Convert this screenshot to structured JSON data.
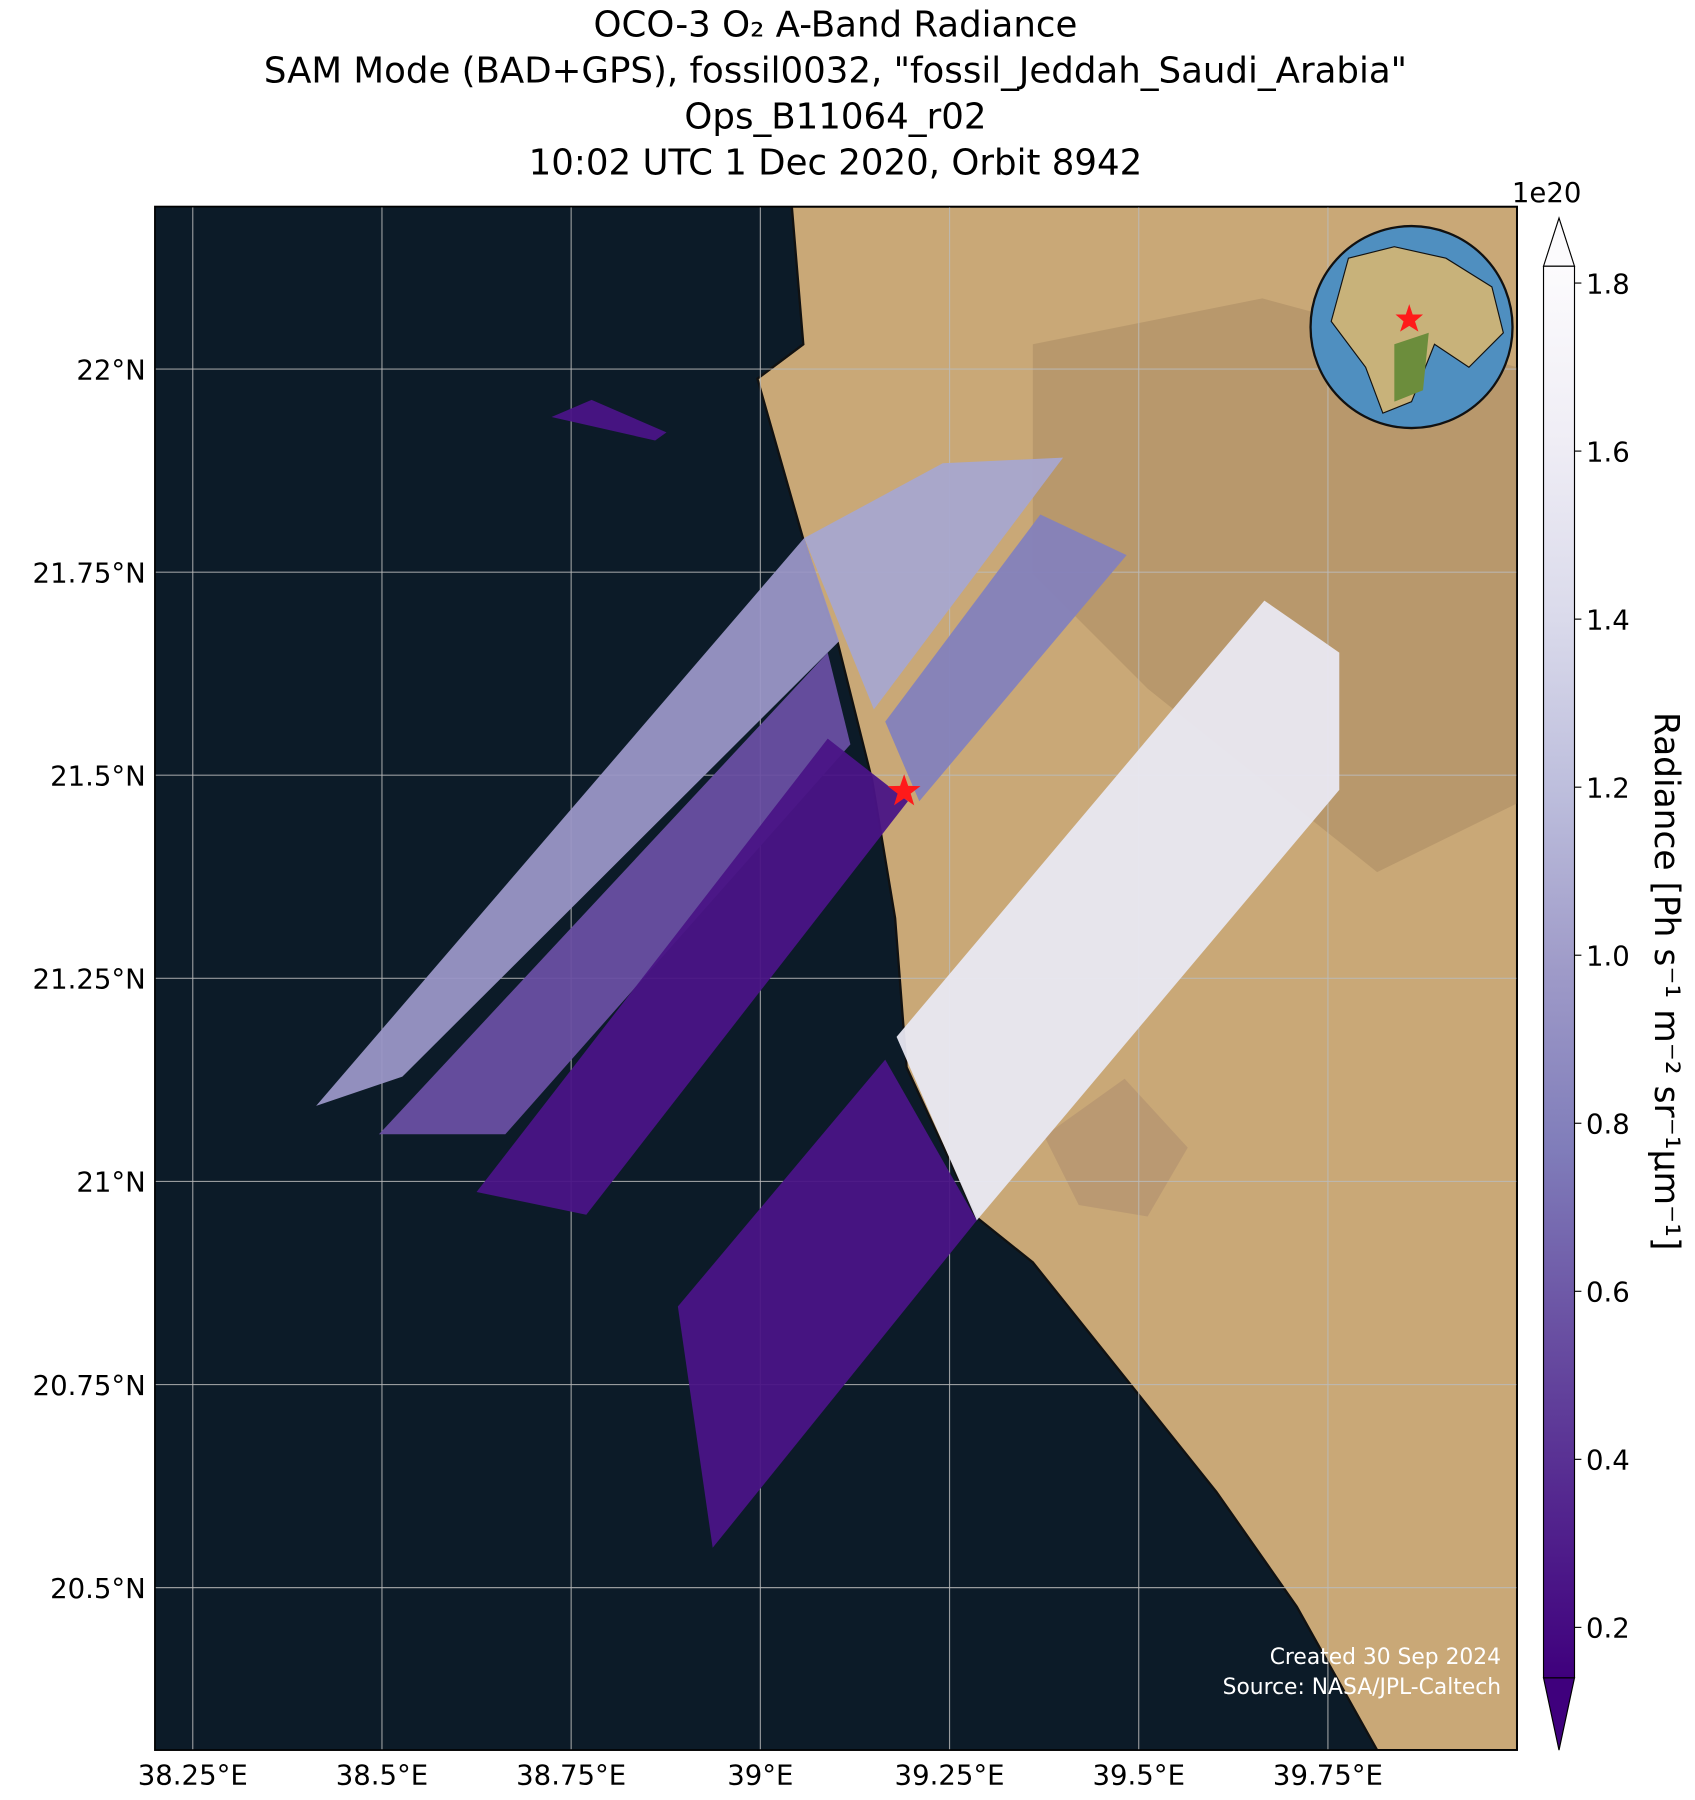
{
  "chart_data": {
    "type": "map",
    "title": [
      "OCO-3 O₂ A-Band Radiance",
      "SAM Mode (BAD+GPS), fossil0032, \"fossil_Jeddah_Saudi_Arabia\"",
      "Ops_B11064_r02",
      "10:02 UTC 1 Dec 2020, Orbit 8942"
    ],
    "xlim": [
      38.2,
      40.0
    ],
    "ylim": [
      20.3,
      22.2
    ],
    "xticks": [
      {
        "value": 38.25,
        "label": "38.25°E"
      },
      {
        "value": 38.5,
        "label": "38.5°E"
      },
      {
        "value": 38.75,
        "label": "38.75°E"
      },
      {
        "value": 39,
        "label": "39°E"
      },
      {
        "value": 39.25,
        "label": "39.25°E"
      },
      {
        "value": 39.5,
        "label": "39.5°E"
      },
      {
        "value": 39.75,
        "label": "39.75°E"
      }
    ],
    "yticks": [
      {
        "value": 22,
        "label": "22°N"
      },
      {
        "value": 21.75,
        "label": "21.75°N"
      },
      {
        "value": 21.5,
        "label": "21.5°N"
      },
      {
        "value": 21.25,
        "label": "21.25°N"
      },
      {
        "value": 21,
        "label": "21°N"
      },
      {
        "value": 20.75,
        "label": "20.75°N"
      },
      {
        "value": 20.5,
        "label": "20.5°N"
      }
    ],
    "grid": true,
    "colormap": [
      "#3f007d",
      "#54278f",
      "#6a51a3",
      "#807dba",
      "#9e9ac8",
      "#bcbddc",
      "#dadaeb",
      "#efedf5",
      "#fcfbfd"
    ],
    "clim": [
      0.14,
      1.82
    ],
    "cticks": [
      0.2,
      0.4,
      0.6,
      0.8,
      {
        "value": 1,
        "label": "1.0"
      },
      1.2,
      1.4,
      1.6,
      1.8
    ],
    "colorbar_multiplier": "1e20",
    "colorbar_label": "Radiance [Ph s⁻¹ m⁻² sr⁻¹μm⁻¹]",
    "swaths": [
      {
        "corners": [
          [
            38.413,
            21.093
          ],
          [
            39.058,
            21.792
          ],
          [
            39.104,
            21.665
          ],
          [
            38.527,
            21.129
          ]
        ],
        "value": 0.95
      },
      {
        "corners": [
          [
            38.496,
            21.058
          ],
          [
            39.089,
            21.651
          ],
          [
            39.119,
            21.538
          ],
          [
            38.663,
            21.058
          ]
        ],
        "value": 0.55
      },
      {
        "corners": [
          [
            38.625,
            20.987
          ],
          [
            39.089,
            21.545
          ],
          [
            39.195,
            21.468
          ],
          [
            38.77,
            20.959
          ]
        ],
        "value": 0.25
      },
      {
        "corners": [
          [
            38.891,
            20.846
          ],
          [
            39.165,
            21.15
          ],
          [
            39.286,
            20.952
          ],
          [
            38.937,
            20.549
          ]
        ],
        "value": 0.25
      },
      {
        "corners": [
          [
            39.058,
            21.792
          ],
          [
            39.241,
            21.884
          ],
          [
            39.4,
            21.891
          ],
          [
            39.15,
            21.581
          ]
        ],
        "value": 1.05
      },
      {
        "corners": [
          [
            39.165,
            21.566
          ],
          [
            39.37,
            21.821
          ],
          [
            39.484,
            21.771
          ],
          [
            39.21,
            21.468
          ]
        ],
        "value": 0.8
      },
      {
        "corners": [
          [
            39.18,
            21.178
          ],
          [
            39.666,
            21.715
          ],
          [
            39.765,
            21.651
          ],
          [
            39.765,
            21.482
          ],
          [
            39.286,
            20.952
          ]
        ],
        "value": 1.55
      },
      {
        "corners": [
          [
            38.724,
            21.941
          ],
          [
            38.777,
            21.962
          ],
          [
            38.876,
            21.922
          ],
          [
            38.861,
            21.912
          ]
        ],
        "value": 0.25
      }
    ],
    "marker": {
      "lon": 39.19,
      "lat": 21.48,
      "color": "#ff1a1a"
    },
    "credits": [
      "Created 30 Sep 2024",
      "Source: NASA/JPL-Caltech"
    ]
  }
}
